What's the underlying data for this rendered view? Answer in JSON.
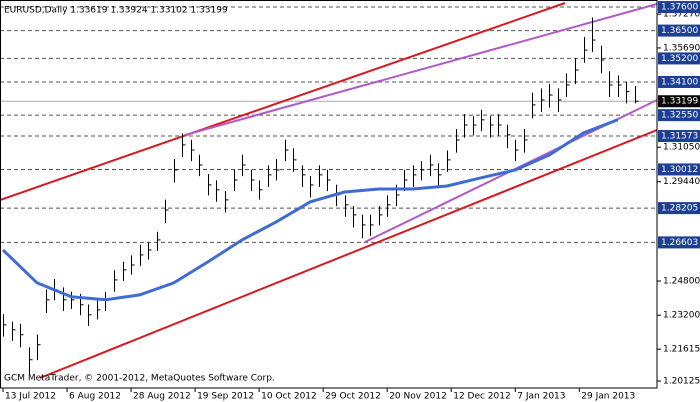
{
  "chart_data": {
    "type": "hlc",
    "title": "EURUSD,Daily  1.33619 1.33924 1.33102 1.33199",
    "footer": "GCM MetaTrader, © 2001-2012, MetaQuotes Software Corp.",
    "color": "#000000",
    "xlim": [
      -0.35,
      76.6
    ],
    "xticks": [
      {
        "value": 0,
        "label": "13 Jul 2012"
      },
      {
        "value": 7.5,
        "label": "6 Aug 2012"
      },
      {
        "value": 15,
        "label": "28 Aug 2012"
      },
      {
        "value": 22.5,
        "label": "19 Sep 2012"
      },
      {
        "value": 30,
        "label": "10 Oct 2012"
      },
      {
        "value": 37.5,
        "label": "29 Oct 2012"
      },
      {
        "value": 45,
        "label": "20 Nov 2012"
      },
      {
        "value": 52.5,
        "label": "12 Dec 2012"
      },
      {
        "value": 60,
        "label": "7 Jan 2013"
      },
      {
        "value": 67.5,
        "label": "29 Jan 2013"
      }
    ],
    "ylim": [
      1.198,
      1.3793
    ],
    "yticks": [
      {
        "value": 1.3727,
        "label": "1.37270"
      },
      {
        "value": 1.3569,
        "label": "1.35690"
      },
      {
        "value": 1.3105,
        "label": "1.31050"
      },
      {
        "value": 1.2944,
        "label": "1.29440"
      },
      {
        "value": 1.248,
        "label": "1.24800"
      },
      {
        "value": 1.232,
        "label": "1.23200"
      },
      {
        "value": 1.21615,
        "label": "1.21615"
      },
      {
        "value": 1.20125,
        "label": "1.20125"
      }
    ],
    "levels": [
      {
        "value": 1.376,
        "label": "1.37600"
      },
      {
        "value": 1.365,
        "label": "1.36500"
      },
      {
        "value": 1.352,
        "label": "1.35200"
      },
      {
        "value": 1.341,
        "label": "1.34100"
      },
      {
        "value": 1.3255,
        "label": "1.32550"
      },
      {
        "value": 1.31573,
        "label": "1.31573"
      },
      {
        "value": 1.30012,
        "label": "1.30012"
      },
      {
        "value": 1.28205,
        "label": "1.28205"
      },
      {
        "value": 1.26603,
        "label": "1.26603"
      }
    ],
    "level_color": "#1c3f94",
    "current": {
      "value": 1.33199,
      "label": "1.33199"
    },
    "high": [
      1.2325,
      1.229,
      1.228,
      1.217,
      1.223,
      1.244,
      1.249,
      1.245,
      1.243,
      1.242,
      1.237,
      1.239,
      1.243,
      1.253,
      1.257,
      1.26,
      1.265,
      1.266,
      1.271,
      1.286,
      1.305,
      1.317,
      1.314,
      1.307,
      1.298,
      1.295,
      1.29,
      1.3,
      1.307,
      1.3,
      1.295,
      1.302,
      1.305,
      1.314,
      1.31,
      1.302,
      1.297,
      1.302,
      1.3,
      1.293,
      1.288,
      1.283,
      1.279,
      1.279,
      1.283,
      1.288,
      1.293,
      1.3,
      1.302,
      1.304,
      1.307,
      1.303,
      1.309,
      1.319,
      1.326,
      1.325,
      1.328,
      1.325,
      1.326,
      1.321,
      1.314,
      1.319,
      1.336,
      1.338,
      1.34,
      1.338,
      1.345,
      1.352,
      1.362,
      1.3711,
      1.358,
      1.346,
      1.344,
      1.341,
      1.3392
    ],
    "low": [
      1.222,
      1.22,
      1.217,
      1.2043,
      1.211,
      1.233,
      1.239,
      1.234,
      1.235,
      1.232,
      1.227,
      1.23,
      1.234,
      1.243,
      1.248,
      1.251,
      1.255,
      1.258,
      1.262,
      1.275,
      1.294,
      1.306,
      1.304,
      1.297,
      1.288,
      1.285,
      1.28,
      1.29,
      1.297,
      1.29,
      1.286,
      1.292,
      1.295,
      1.304,
      1.299,
      1.292,
      1.287,
      1.292,
      1.29,
      1.283,
      1.278,
      1.273,
      1.268,
      1.269,
      1.274,
      1.278,
      1.283,
      1.29,
      1.292,
      1.295,
      1.297,
      1.292,
      1.299,
      1.308,
      1.315,
      1.316,
      1.318,
      1.315,
      1.316,
      1.31,
      1.304,
      1.308,
      1.324,
      1.327,
      1.329,
      1.327,
      1.334,
      1.34,
      1.35,
      1.355,
      1.345,
      1.334,
      1.334,
      1.331,
      1.331
    ],
    "close": [
      1.2275,
      1.2252,
      1.2229,
      1.2112,
      1.2182,
      1.2392,
      1.2439,
      1.2392,
      1.2392,
      1.2369,
      1.2322,
      1.2345,
      1.2392,
      1.2485,
      1.2532,
      1.2555,
      1.2602,
      1.2625,
      1.2672,
      1.2812,
      1.2999,
      1.3116,
      1.3092,
      1.3022,
      1.2929,
      1.2906,
      1.2859,
      1.2952,
      1.3022,
      1.2952,
      1.2906,
      1.2976,
      1.2999,
      1.3092,
      1.3046,
      1.2976,
      1.2929,
      1.2976,
      1.2952,
      1.2882,
      1.2836,
      1.2789,
      1.2742,
      1.2742,
      1.2789,
      1.2836,
      1.2882,
      1.2952,
      1.2976,
      1.2999,
      1.3022,
      1.2976,
      1.3046,
      1.3139,
      1.3209,
      1.3209,
      1.3233,
      1.3209,
      1.3209,
      1.3163,
      1.3092,
      1.3139,
      1.3303,
      1.3326,
      1.3349,
      1.3326,
      1.3396,
      1.3466,
      1.3559,
      1.3606,
      1.3513,
      1.3396,
      1.3396,
      1.3365,
      1.332
    ],
    "ma_color": "#3f6cd0",
    "ma_x": [
      0,
      4,
      8,
      12,
      16,
      20,
      24,
      28,
      32,
      36,
      40,
      44,
      48,
      52,
      56,
      60,
      64,
      68,
      72
    ],
    "ma_values": [
      1.2625,
      1.2471,
      1.2406,
      1.2392,
      1.2415,
      1.2471,
      1.2569,
      1.2672,
      1.2756,
      1.285,
      1.2896,
      1.291,
      1.291,
      1.2924,
      1.2962,
      1.2999,
      1.3069,
      1.3172,
      1.3233
    ]
  }
}
